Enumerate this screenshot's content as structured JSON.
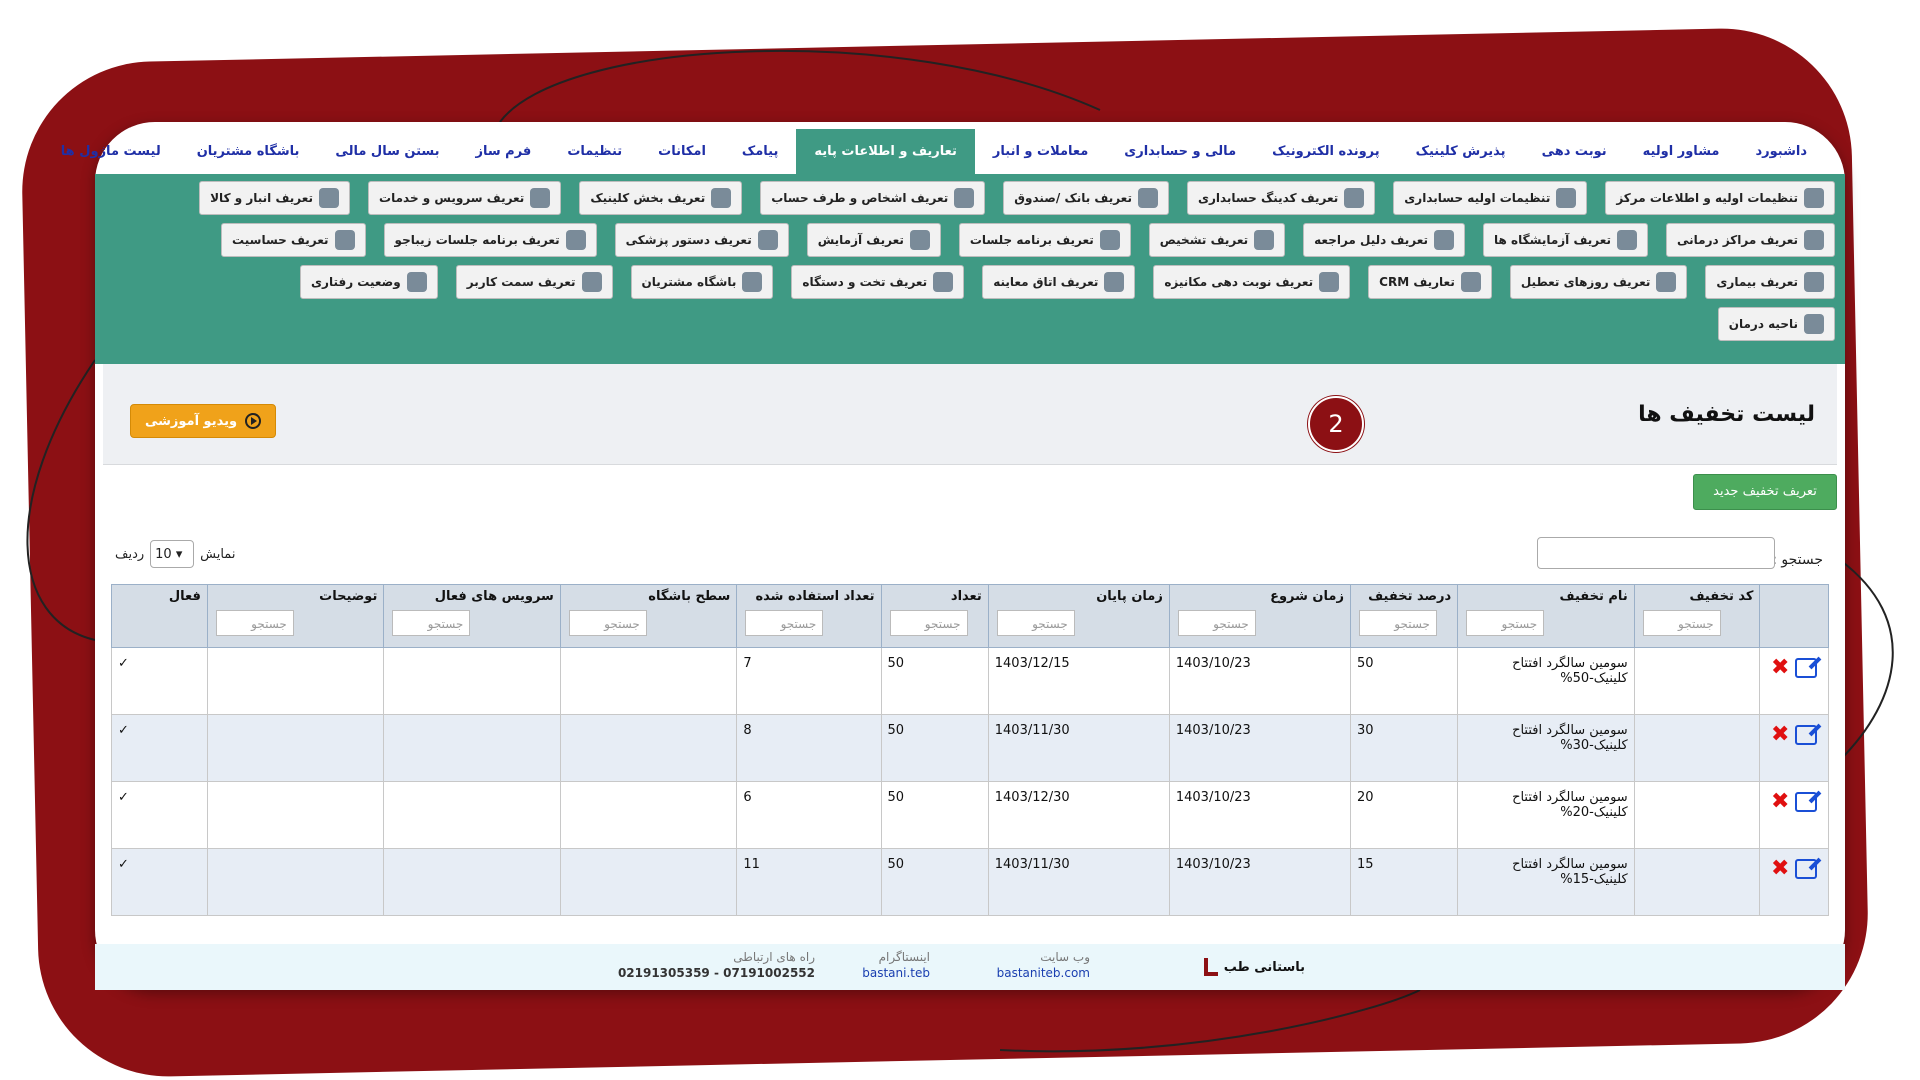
{
  "menu": [
    "داشبورد",
    "مشاور اولیه",
    "نوبت دهی",
    "پذیرش کلینیک",
    "پرونده الکترونیک",
    "مالی و حسابداری",
    "معاملات و انبار",
    "تعاریف و اطلاعات پایه",
    "پیامک",
    "امکانات",
    "تنظیمات",
    "فرم ساز",
    "بستن سال مالی",
    "باشگاه مشتریان",
    "لیست ماژول ها"
  ],
  "active_menu_index": 7,
  "submenu_rows": [
    [
      "تنظیمات اولیه و اطلاعات مرکز",
      "تنظیمات اولیه حسابداری",
      "تعریف کدینگ حسابداری",
      "تعریف بانک /صندوق",
      "تعریف اشخاص و طرف حساب",
      "تعریف بخش کلینیک",
      "تعریف سرویس و خدمات",
      "تعریف انبار و کالا"
    ],
    [
      "تعریف مراکز درمانی",
      "تعریف آزمایشگاه ها",
      "تعریف دلیل مراجعه",
      "تعریف تشخیص",
      "تعریف برنامه جلسات",
      "تعریف آزمایش",
      "تعریف دستور پزشکی",
      "تعریف برنامه جلسات زیباجو",
      "تعریف حساسیت"
    ],
    [
      "تعریف بیماری",
      "تعریف روزهای تعطیل",
      "تعاریف CRM",
      "تعریف نوبت دهی مکانیزه",
      "تعریف اتاق معاینه",
      "تعریف تخت و دستگاه",
      "باشگاه مشتریان",
      "تعریف سمت کاربر",
      "وضعیت رفتاری"
    ],
    [
      "ناحیه درمان"
    ]
  ],
  "page": {
    "title": "لیست تخفیف ها",
    "step_number": "2",
    "video_button": "ویدیو آموزشی",
    "new_button": "تعریف تخفیف جدید",
    "search_label": "جستجو :",
    "length_show": "نمایش",
    "length_value": "10",
    "length_rows": "ردیف",
    "filter_placeholder": "جستجو"
  },
  "table": {
    "headers": [
      "کد تخفیف",
      "نام تخفیف",
      "درصد تخفیف",
      "زمان شروع",
      "زمان پایان",
      "تعداد",
      "تعداد استفاده شده",
      "سطح باشگاه",
      "سرویس های فعال",
      "توضیحات",
      "فعال"
    ],
    "rows": [
      {
        "name": "سومین سالگرد افتتاح کلینیک-50%",
        "percent": "50",
        "start": "1403/10/23",
        "end": "1403/12/15",
        "count": "50",
        "used": "7",
        "active": "✓"
      },
      {
        "name": "سومین سالگرد افتتاح کلینیک-30%",
        "percent": "30",
        "start": "1403/10/23",
        "end": "1403/11/30",
        "count": "50",
        "used": "8",
        "active": "✓"
      },
      {
        "name": "سومین سالگرد افتتاح کلینیک-20%",
        "percent": "20",
        "start": "1403/10/23",
        "end": "1403/12/30",
        "count": "50",
        "used": "6",
        "active": "✓"
      },
      {
        "name": "سومین سالگرد افتتاح کلینیک-15%",
        "percent": "15",
        "start": "1403/10/23",
        "end": "1403/11/30",
        "count": "50",
        "used": "11",
        "active": "✓"
      }
    ]
  },
  "footer": {
    "brand": "باستانی طب",
    "website_title": "وب سایت",
    "website": "bastaniteb.com",
    "instagram_title": "اینستاگرام",
    "instagram": "bastani.teb",
    "contact_title": "راه های ارتباطی",
    "phones": "07191002552 - 02191305359"
  },
  "colors": {
    "accent_green": "#3f9a84",
    "frame_red": "#8c1014",
    "video_orange": "#f0a21a",
    "new_green": "#4eab5f"
  }
}
